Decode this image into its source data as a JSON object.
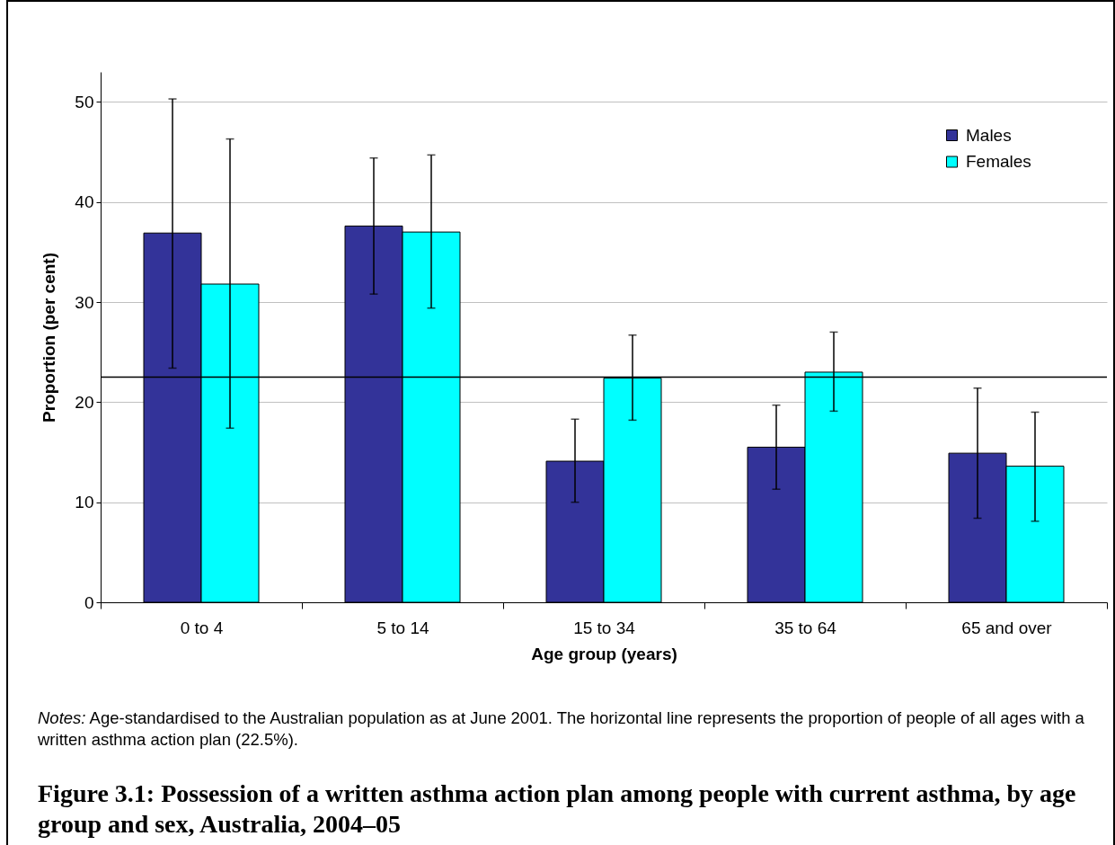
{
  "chart_data": {
    "type": "bar",
    "title": "Figure 3.1: Possession of a written asthma action plan among people with current asthma, by age group and sex, Australia, 2004–05",
    "xlabel": "Age group (years)",
    "ylabel": "Proportion (per cent)",
    "categories": [
      "0 to 4",
      "5 to 14",
      "15 to 34",
      "35 to 64",
      "65 and over"
    ],
    "series": [
      {
        "name": "Males",
        "color": "#333399",
        "values": [
          36.9,
          37.6,
          14.1,
          15.5,
          14.9
        ],
        "errors": [
          [
            23.4,
            50.3
          ],
          [
            30.8,
            44.4
          ],
          [
            10.0,
            18.3
          ],
          [
            11.3,
            19.7
          ],
          [
            8.4,
            21.4
          ]
        ]
      },
      {
        "name": "Females",
        "color": "#00ffff",
        "values": [
          31.8,
          37.0,
          22.4,
          23.0,
          13.6
        ],
        "errors": [
          [
            17.4,
            46.3
          ],
          [
            29.4,
            44.7
          ],
          [
            18.2,
            26.7
          ],
          [
            19.1,
            27.0
          ],
          [
            8.1,
            19.0
          ]
        ]
      }
    ],
    "ylim": [
      0,
      53
    ],
    "yticks": [
      0,
      10,
      20,
      30,
      40,
      50
    ],
    "grid": "y",
    "legend": "top right",
    "ref_lines": [
      {
        "axis": "y",
        "value": 22.5,
        "color": "#000000"
      }
    ],
    "annotations": [
      "Notes: Age-standardised to the Australian population as at June 2001. The horizontal line represents the proportion of people of all ages with a written asthma action plan (22.5%)."
    ]
  }
}
